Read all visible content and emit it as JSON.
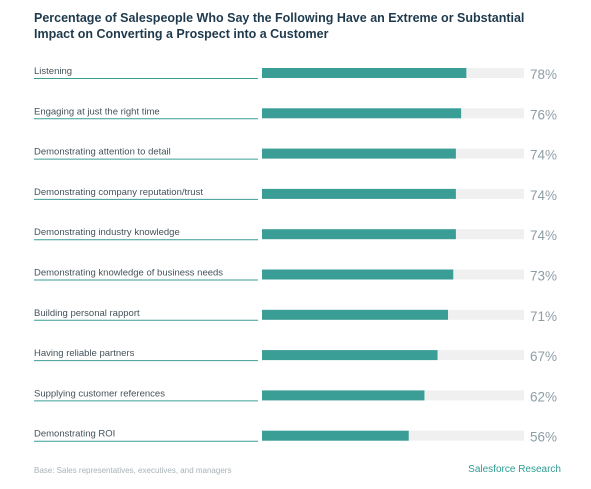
{
  "header": {
    "title_line1": "Percentage of Salespeople Who Say the Following Have an Extreme or Substantial",
    "title_line2": "Impact on Converting a Prospect into a Customer"
  },
  "footer": {
    "note": "Base: Sales representatives, executives, and managers",
    "brand": "Salesforce Research"
  },
  "colors": {
    "bar": "#3a9e96",
    "track": "#f0f0f0",
    "rule": "#3a9e96",
    "title": "#1e3a4c"
  },
  "chart_data": {
    "type": "bar",
    "orientation": "horizontal",
    "categories": [
      "Listening",
      "Engaging at just the right time",
      "Demonstrating attention to detail",
      "Demonstrating company reputation/trust",
      "Demonstrating industry knowledge",
      "Demonstrating knowledge of business needs",
      "Building personal rapport",
      "Having reliable partners",
      "Supplying customer references",
      "Demonstrating ROI"
    ],
    "values": [
      78,
      76,
      74,
      74,
      74,
      73,
      71,
      67,
      62,
      56
    ],
    "value_labels": [
      "78%",
      "76%",
      "74%",
      "74%",
      "74%",
      "73%",
      "71%",
      "67%",
      "62%",
      "56%"
    ],
    "title": "Percentage of Salespeople Who Say the Following Have an Extreme or Substantial Impact on Converting a Prospect into a Customer",
    "xlabel": "",
    "ylabel": "",
    "xlim": [
      0,
      100
    ],
    "grid": false,
    "legend": "none"
  }
}
